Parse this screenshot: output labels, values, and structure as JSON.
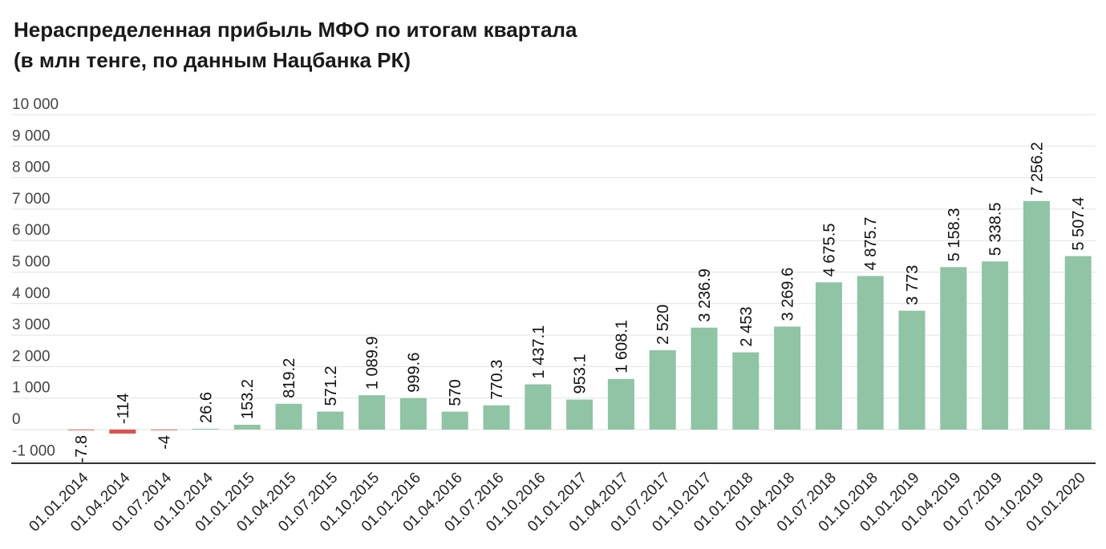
{
  "chart_data": {
    "type": "bar",
    "title": "Нераспределенная прибыль МФО по итогам квартала",
    "subtitle": "(в млн тенге, по данным Нацбанка РК)",
    "xlabel": "",
    "ylabel": "",
    "ylim": [
      -1000,
      10000
    ],
    "yticks": [
      {
        "value": 10000,
        "label": "10 000"
      },
      {
        "value": 9000,
        "label": "9 000"
      },
      {
        "value": 8000,
        "label": "8 000"
      },
      {
        "value": 7000,
        "label": "7 000"
      },
      {
        "value": 6000,
        "label": "6 000"
      },
      {
        "value": 5000,
        "label": "5 000"
      },
      {
        "value": 4000,
        "label": "4 000"
      },
      {
        "value": 3000,
        "label": "3 000"
      },
      {
        "value": 2000,
        "label": "2 000"
      },
      {
        "value": 1000,
        "label": "1 000"
      },
      {
        "value": 0,
        "label": "0"
      },
      {
        "value": -1000,
        "label": "-1 000"
      }
    ],
    "grid": true,
    "legend": "none",
    "colors": {
      "positive": "#8fc4a5",
      "negative": "#d9534f"
    },
    "categories": [
      "01.01.2014",
      "01.04.2014",
      "01.07.2014",
      "01.10.2014",
      "01.01.2015",
      "01.04.2015",
      "01.07.2015",
      "01.10.2015",
      "01.01.2016",
      "01.04.2016",
      "01.07.2016",
      "01.10.2016",
      "01.01.2017",
      "01.04.2017",
      "01.07.2017",
      "01.10.2017",
      "01.01.2018",
      "01.04.2018",
      "01.07.2018",
      "01.10.2018",
      "01.01.2019",
      "01.04.2019",
      "01.07.2019",
      "01.10.2019",
      "01.01.2020"
    ],
    "values": [
      -7.8,
      -114,
      -4,
      26.6,
      153.2,
      819.2,
      571.2,
      1089.9,
      999.6,
      570,
      770.3,
      1437.1,
      953.1,
      1608.1,
      2520,
      3236.9,
      2453,
      3269.6,
      4675.5,
      4875.7,
      3773,
      5158.3,
      5338.5,
      7256.2,
      5507.4
    ],
    "data_labels": [
      "-7.8",
      "-114",
      "-4",
      "26.6",
      "153.2",
      "819.2",
      "571.2",
      "1 089.9",
      "999.6",
      "570",
      "770.3",
      "1 437.1",
      "953.1",
      "1 608.1",
      "2 520",
      "3 236.9",
      "2 453",
      "3 269.6",
      "4 675.5",
      "4 875.7",
      "3 773",
      "5 158.3",
      "5 338.5",
      "7 256.2",
      "5 507.4"
    ]
  }
}
